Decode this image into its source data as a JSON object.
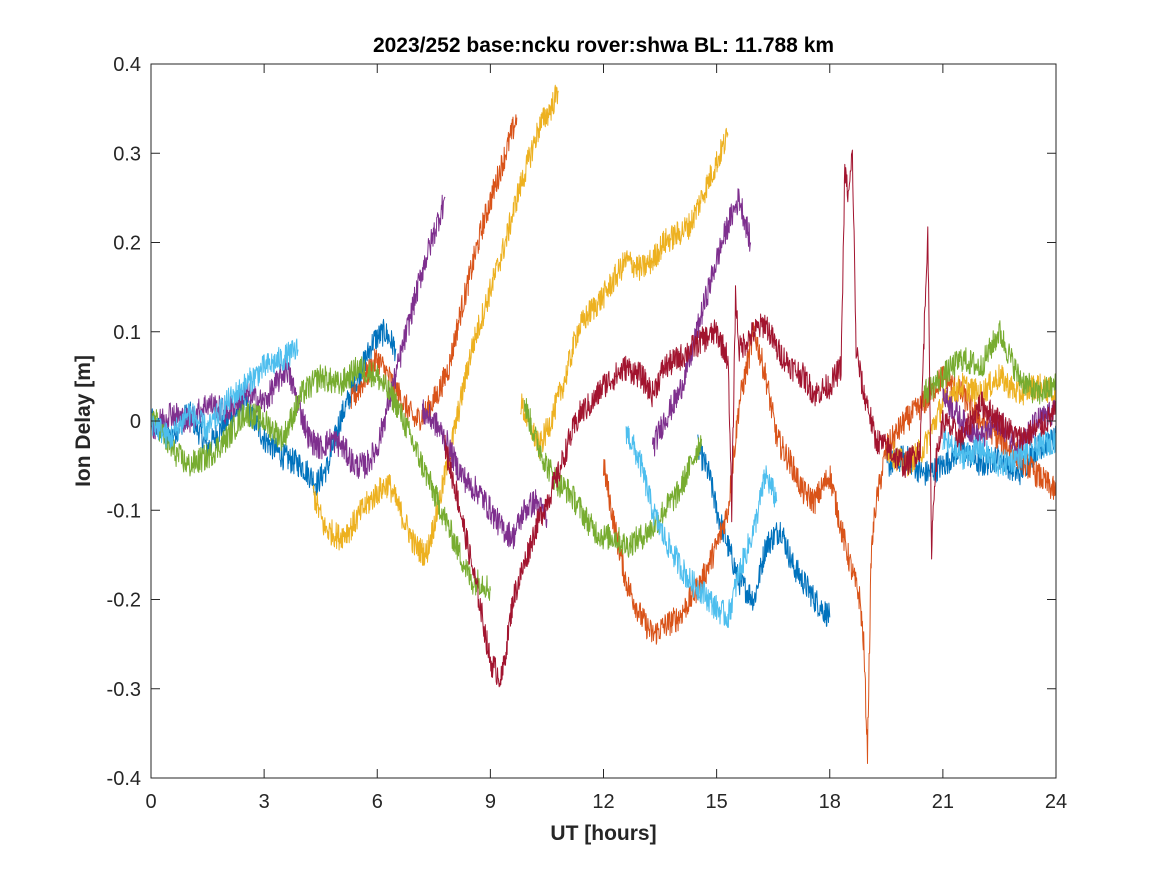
{
  "chart_data": {
    "type": "line",
    "title": "2023/252 base:ncku rover:shwa BL: 11.788 km",
    "xlabel": "UT [hours]",
    "ylabel": "Ion Delay [m]",
    "xlim": [
      0,
      24
    ],
    "ylim": [
      -0.4,
      0.4
    ],
    "xticks": [
      0,
      3,
      6,
      9,
      12,
      15,
      18,
      21,
      24
    ],
    "xtick_labels": [
      "0",
      "3",
      "6",
      "9",
      "12",
      "15",
      "18",
      "21",
      "24"
    ],
    "yticks": [
      -0.4,
      -0.3,
      -0.2,
      -0.1,
      0,
      0.1,
      0.2,
      0.3,
      0.4
    ],
    "ytick_labels": [
      "-0.4",
      "-0.3",
      "-0.2",
      "-0.1",
      "0",
      "0.1",
      "0.2",
      "0.3",
      "0.4"
    ],
    "grid": false,
    "legend": false,
    "series": [
      {
        "color": "#0072BD",
        "x": [
          0,
          0.5,
          1.0,
          1.5,
          2.0,
          2.5,
          3.0,
          3.5,
          4.0,
          4.4,
          4.7,
          5.0,
          5.3,
          5.6,
          5.9,
          6.2,
          6.5
        ],
        "y": [
          0.0,
          -0.02,
          0.01,
          -0.03,
          0.0,
          0.02,
          -0.02,
          -0.04,
          -0.05,
          -0.07,
          -0.05,
          0.0,
          0.03,
          0.06,
          0.09,
          0.1,
          0.08
        ]
      },
      {
        "color": "#0072BD",
        "x": [
          14.5,
          14.8,
          15.0,
          15.3,
          15.6,
          16.0,
          16.3,
          16.7,
          17.0,
          17.3,
          17.6,
          18.0
        ],
        "y": [
          -0.03,
          -0.06,
          -0.1,
          -0.14,
          -0.18,
          -0.2,
          -0.14,
          -0.12,
          -0.16,
          -0.18,
          -0.2,
          -0.22
        ]
      },
      {
        "color": "#0072BD",
        "x": [
          19.5,
          20.0,
          20.5,
          21.0,
          21.5,
          22.0,
          22.5,
          23.0,
          23.5,
          24.0
        ],
        "y": [
          -0.05,
          -0.04,
          -0.06,
          -0.05,
          -0.03,
          -0.05,
          -0.04,
          -0.06,
          -0.03,
          -0.02
        ]
      },
      {
        "color": "#D95319",
        "x": [
          5.3,
          5.7,
          6.0,
          6.3,
          6.7,
          7.0,
          7.3,
          7.6,
          7.9,
          8.2,
          8.5,
          8.8,
          9.1,
          9.4,
          9.7
        ],
        "y": [
          0.02,
          0.05,
          0.07,
          0.05,
          0.02,
          0.0,
          0.01,
          0.03,
          0.06,
          0.12,
          0.17,
          0.22,
          0.26,
          0.3,
          0.34
        ]
      },
      {
        "color": "#D95319",
        "x": [
          12.0,
          12.3,
          12.6,
          13.0,
          13.3,
          13.6,
          14.0,
          14.3,
          14.6,
          15.0,
          15.3,
          15.6,
          16.0,
          16.3,
          16.6,
          17.0,
          17.3,
          17.6,
          18.0,
          18.3,
          18.6,
          18.8,
          18.9,
          19.0,
          19.1,
          19.2,
          19.5,
          20.0,
          20.5,
          21.0,
          21.5,
          22.0,
          22.5,
          23.0,
          23.5,
          24.0
        ],
        "y": [
          -0.05,
          -0.12,
          -0.18,
          -0.22,
          -0.24,
          -0.23,
          -0.22,
          -0.2,
          -0.18,
          -0.14,
          -0.1,
          0.02,
          0.1,
          0.05,
          -0.02,
          -0.05,
          -0.08,
          -0.09,
          -0.06,
          -0.12,
          -0.17,
          -0.2,
          -0.25,
          -0.37,
          -0.15,
          -0.1,
          -0.03,
          0.0,
          0.02,
          0.05,
          0.03,
          0.0,
          -0.02,
          -0.04,
          -0.06,
          -0.08
        ]
      },
      {
        "color": "#EDB120",
        "x": [
          4.3,
          4.6,
          5.0,
          5.3,
          5.6,
          6.0,
          6.3,
          6.6,
          7.0,
          7.3,
          7.6,
          7.9,
          8.2,
          8.5,
          8.8,
          9.1,
          9.4,
          9.7,
          10.0,
          10.3,
          10.6,
          10.8
        ],
        "y": [
          -0.08,
          -0.12,
          -0.13,
          -0.12,
          -0.1,
          -0.08,
          -0.07,
          -0.1,
          -0.14,
          -0.15,
          -0.1,
          -0.04,
          0.02,
          0.08,
          0.12,
          0.16,
          0.2,
          0.25,
          0.29,
          0.33,
          0.35,
          0.37
        ]
      },
      {
        "color": "#EDB120",
        "x": [
          9.8,
          10.0,
          10.3,
          10.6,
          11.0,
          11.3,
          11.6,
          12.0,
          12.3,
          12.6,
          13.0,
          13.3,
          13.6,
          14.0,
          14.3,
          14.6,
          15.0,
          15.3
        ],
        "y": [
          0.02,
          0.0,
          -0.03,
          0.0,
          0.05,
          0.1,
          0.12,
          0.14,
          0.16,
          0.18,
          0.17,
          0.18,
          0.2,
          0.21,
          0.22,
          0.25,
          0.29,
          0.32
        ]
      },
      {
        "color": "#EDB120",
        "x": [
          19.5,
          20.0,
          20.5,
          21.0,
          21.5,
          22.0,
          22.5,
          23.0,
          23.5,
          24.0
        ],
        "y": [
          -0.03,
          -0.05,
          -0.03,
          0.02,
          0.04,
          0.03,
          0.05,
          0.03,
          0.04,
          0.03
        ]
      },
      {
        "color": "#7E2F8E",
        "x": [
          0,
          0.5,
          1.0,
          1.5,
          2.0,
          2.5,
          3.0,
          3.3,
          3.6,
          3.9,
          4.2,
          4.5,
          4.8,
          5.1,
          5.4,
          5.7,
          6.0,
          6.3,
          6.6,
          6.9,
          7.2,
          7.5,
          7.8
        ],
        "y": [
          -0.01,
          0.01,
          0.0,
          0.02,
          0.01,
          0.03,
          0.02,
          0.04,
          0.06,
          0.02,
          -0.02,
          -0.03,
          -0.02,
          -0.03,
          -0.05,
          -0.05,
          -0.03,
          0.02,
          0.07,
          0.12,
          0.17,
          0.21,
          0.25
        ]
      },
      {
        "color": "#7E2F8E",
        "x": [
          7.2,
          7.5,
          7.8,
          8.1,
          8.4,
          8.7,
          9.0,
          9.3,
          9.6,
          9.9,
          10.2,
          10.5
        ],
        "y": [
          0.01,
          0.0,
          -0.02,
          -0.05,
          -0.07,
          -0.08,
          -0.1,
          -0.12,
          -0.13,
          -0.1,
          -0.09,
          -0.11
        ]
      },
      {
        "color": "#7E2F8E",
        "x": [
          13.3,
          13.6,
          14.0,
          14.3,
          14.6,
          15.0,
          15.3,
          15.6,
          15.9
        ],
        "y": [
          -0.03,
          0.0,
          0.03,
          0.07,
          0.12,
          0.18,
          0.22,
          0.25,
          0.2
        ]
      },
      {
        "color": "#7E2F8E",
        "x": [
          21.0,
          21.5,
          22.0,
          22.5,
          23.0,
          23.5,
          24.0
        ],
        "y": [
          0.03,
          0.0,
          -0.02,
          0.0,
          -0.03,
          0.0,
          0.01
        ]
      },
      {
        "color": "#77AC30",
        "x": [
          0,
          0.5,
          1.0,
          1.5,
          2.0,
          2.5,
          3.0,
          3.5,
          4.0,
          4.5,
          5.0,
          5.5,
          6.0,
          6.5,
          7.0,
          7.3,
          7.6,
          7.9,
          8.2,
          8.5,
          8.8,
          9.0
        ],
        "y": [
          0.01,
          -0.03,
          -0.05,
          -0.04,
          -0.02,
          0.01,
          0.0,
          -0.02,
          0.03,
          0.05,
          0.04,
          0.06,
          0.05,
          0.02,
          -0.03,
          -0.06,
          -0.09,
          -0.12,
          -0.15,
          -0.18,
          -0.18,
          -0.19
        ]
      },
      {
        "color": "#77AC30",
        "x": [
          9.9,
          10.2,
          10.5,
          10.8,
          11.1,
          11.4,
          11.7,
          12.0,
          12.3,
          12.6,
          13.0,
          13.3,
          13.6,
          14.0,
          14.3,
          14.6
        ],
        "y": [
          0.02,
          -0.02,
          -0.05,
          -0.07,
          -0.08,
          -0.1,
          -0.12,
          -0.13,
          -0.13,
          -0.14,
          -0.13,
          -0.12,
          -0.1,
          -0.08,
          -0.05,
          -0.02
        ]
      },
      {
        "color": "#77AC30",
        "x": [
          20.5,
          21.0,
          21.5,
          22.0,
          22.5,
          23.0,
          23.5,
          24.0
        ],
        "y": [
          0.03,
          0.05,
          0.07,
          0.06,
          0.1,
          0.05,
          0.03,
          0.04
        ]
      },
      {
        "color": "#4DBEEE",
        "x": [
          0,
          0.5,
          1.0,
          1.5,
          2.0,
          2.5,
          3.0,
          3.5,
          3.9
        ],
        "y": [
          0.0,
          -0.02,
          0.01,
          -0.01,
          0.02,
          0.04,
          0.06,
          0.07,
          0.08
        ]
      },
      {
        "color": "#4DBEEE",
        "x": [
          12.6,
          13.0,
          13.3,
          13.6,
          14.0,
          14.3,
          14.6,
          15.0,
          15.3,
          15.6,
          16.0,
          16.3,
          16.6
        ],
        "y": [
          -0.01,
          -0.05,
          -0.1,
          -0.13,
          -0.16,
          -0.18,
          -0.19,
          -0.21,
          -0.22,
          -0.17,
          -0.12,
          -0.06,
          -0.09
        ]
      },
      {
        "color": "#4DBEEE",
        "x": [
          21.0,
          21.5,
          22.0,
          22.5,
          23.0,
          23.5,
          24.0
        ],
        "y": [
          -0.02,
          -0.04,
          -0.03,
          -0.05,
          -0.04,
          -0.03,
          -0.02
        ]
      },
      {
        "color": "#A2142F",
        "x": [
          7.8,
          8.1,
          8.4,
          8.7,
          9.0,
          9.3,
          9.6,
          9.9,
          10.2,
          10.5,
          10.8,
          11.1,
          11.4,
          11.7,
          12.0,
          12.3,
          12.6,
          13.0,
          13.3,
          13.6,
          14.0,
          14.3,
          14.6,
          15.0,
          15.3,
          15.4,
          15.5,
          15.6,
          16.0,
          16.3,
          16.6,
          17.0,
          17.3,
          17.6,
          18.0,
          18.3,
          18.4,
          18.5,
          18.6,
          18.7,
          18.9,
          19.0,
          19.2,
          19.5,
          20.0,
          20.4,
          20.6,
          20.7,
          20.8,
          21.0,
          21.5,
          22.0,
          22.5,
          23.0,
          23.5,
          24.0
        ],
        "y": [
          -0.03,
          -0.08,
          -0.14,
          -0.2,
          -0.27,
          -0.29,
          -0.2,
          -0.16,
          -0.12,
          -0.09,
          -0.06,
          -0.02,
          0.01,
          0.02,
          0.04,
          0.05,
          0.06,
          0.05,
          0.03,
          0.06,
          0.07,
          0.08,
          0.09,
          0.1,
          0.07,
          -0.1,
          0.14,
          0.08,
          0.1,
          0.11,
          0.08,
          0.06,
          0.05,
          0.03,
          0.04,
          0.06,
          0.28,
          0.25,
          0.3,
          0.08,
          0.03,
          0.02,
          -0.02,
          -0.03,
          -0.05,
          -0.03,
          0.22,
          -0.14,
          -0.05,
          0.0,
          -0.02,
          0.02,
          0.0,
          -0.02,
          -0.01,
          0.01
        ]
      }
    ]
  }
}
